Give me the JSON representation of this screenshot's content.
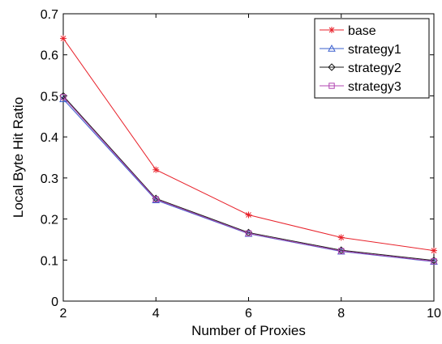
{
  "chart_data": {
    "type": "line",
    "title": "",
    "xlabel": "Number of Proxies",
    "ylabel": "Local Byte Hit Ratio",
    "x": [
      2,
      4,
      6,
      8,
      10
    ],
    "xlim": [
      2,
      10
    ],
    "ylim": [
      0,
      0.7
    ],
    "xticks": [
      2,
      4,
      6,
      8,
      10
    ],
    "xtick_labels": [
      "2",
      "4",
      "6",
      "8",
      "10"
    ],
    "yticks": [
      0,
      0.1,
      0.2,
      0.3,
      0.4,
      0.5,
      0.6,
      0.7
    ],
    "ytick_labels": [
      "0",
      "0.1",
      "0.2",
      "0.3",
      "0.4",
      "0.5",
      "0.6",
      "0.7"
    ],
    "grid": false,
    "legend_position": "top-right",
    "series": [
      {
        "name": "base",
        "values": [
          0.64,
          0.32,
          0.21,
          0.155,
          0.123
        ],
        "color": "#e8222b",
        "marker": "star"
      },
      {
        "name": "strategy1",
        "values": [
          0.492,
          0.246,
          0.164,
          0.121,
          0.096
        ],
        "color": "#3a5fcd",
        "marker": "triangle"
      },
      {
        "name": "strategy2",
        "values": [
          0.5,
          0.25,
          0.167,
          0.124,
          0.099
        ],
        "color": "#1a1a1a",
        "marker": "diamond"
      },
      {
        "name": "strategy3",
        "values": [
          0.497,
          0.248,
          0.165,
          0.122,
          0.097
        ],
        "color": "#b145b1",
        "marker": "square"
      }
    ]
  }
}
